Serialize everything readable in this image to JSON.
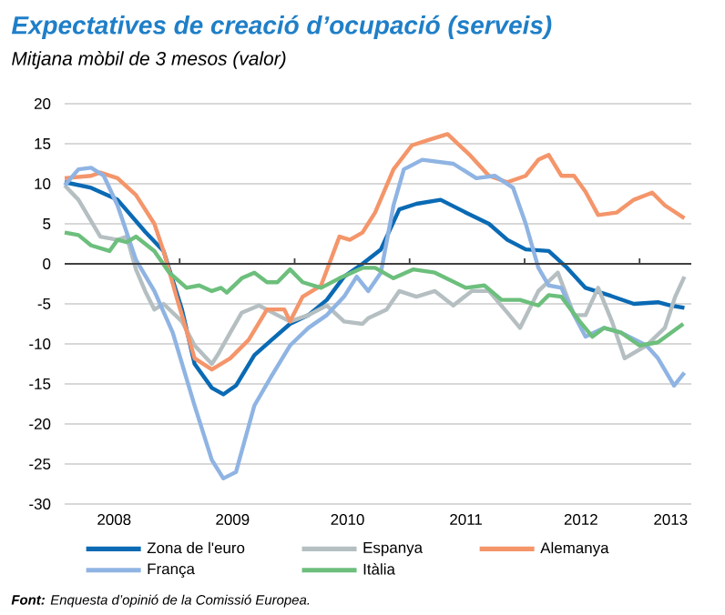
{
  "chart_data": {
    "type": "line",
    "title": "Expectatives de creació d’ocupació (serveis)",
    "subtitle": "Mitjana mòbil de 3 mesos (valor)",
    "annotations": [
      "**Font:** Enquesta d’opinió de la Comissió Europea."
    ],
    "xlim": [
      2008,
      2013.45
    ],
    "ylim": [
      -30,
      20
    ],
    "xticks": [
      {
        "value": 2008.43,
        "label": "2008"
      },
      {
        "value": 2009.46,
        "label": "2009"
      },
      {
        "value": 2010.46,
        "label": "2010"
      },
      {
        "value": 2011.49,
        "label": "2011"
      },
      {
        "value": 2012.49,
        "label": "2012"
      },
      {
        "value": 2013.27,
        "label": "2013"
      },
      {
        "value": 2009,
        "label": null
      },
      {
        "value": 2010,
        "label": null
      },
      {
        "value": 2011,
        "label": null
      },
      {
        "value": 2012,
        "label": null
      },
      {
        "value": 2013,
        "label": null
      }
    ],
    "yticks": [
      -30,
      -25,
      -20,
      -15,
      -10,
      -5,
      0,
      5,
      10,
      15,
      20
    ],
    "grid": "y",
    "legend": "bottom",
    "marker": "none",
    "line_style": "solid",
    "series": [
      {
        "name": "Zona de l'euro",
        "color": "#0a6ab4",
        "x": [
          2008.0,
          2008.23,
          2008.46,
          2008.7,
          2008.86,
          2009.02,
          2009.13,
          2009.28,
          2009.38,
          2009.49,
          2009.65,
          2009.8,
          2009.96,
          2010.12,
          2010.28,
          2010.43,
          2010.59,
          2010.75,
          2010.91,
          2011.06,
          2011.27,
          2011.49,
          2011.69,
          2011.85,
          2012.01,
          2012.21,
          2012.37,
          2012.53,
          2012.75,
          2012.95,
          2013.16,
          2013.27,
          2013.39
        ],
        "values": [
          10.2,
          9.5,
          8,
          4,
          1.6,
          -5.7,
          -12.5,
          -15.5,
          -16.3,
          -15.2,
          -11.4,
          -9.5,
          -7.5,
          -6.4,
          -4.5,
          -1.6,
          0,
          1.8,
          6.8,
          7.5,
          8,
          6.4,
          5,
          3,
          1.8,
          1.6,
          -0.5,
          -3,
          -4,
          -5,
          -4.8,
          -5.2,
          -5.5
        ]
      },
      {
        "name": "Espanya",
        "color": "#b5bfc1",
        "x": [
          2008.0,
          2008.12,
          2008.31,
          2008.46,
          2008.54,
          2008.62,
          2008.7,
          2008.78,
          2008.86,
          2009.02,
          2009.13,
          2009.28,
          2009.33,
          2009.44,
          2009.54,
          2009.69,
          2009.85,
          2009.96,
          2010.12,
          2010.28,
          2010.43,
          2010.59,
          2010.64,
          2010.8,
          2010.91,
          2011.06,
          2011.22,
          2011.38,
          2011.54,
          2011.69,
          2011.85,
          2011.96,
          2012.12,
          2012.29,
          2012.43,
          2012.53,
          2012.64,
          2012.76,
          2012.87,
          2013.06,
          2013.22,
          2013.31,
          2013.39
        ],
        "values": [
          9.8,
          8,
          3.4,
          3,
          3.4,
          -0.7,
          -3.4,
          -5.7,
          -5,
          -7.2,
          -10.2,
          -12.5,
          -11.4,
          -8.6,
          -6.1,
          -5.2,
          -6.4,
          -7.2,
          -6.4,
          -5.2,
          -7.2,
          -7.5,
          -6.8,
          -5.7,
          -3.4,
          -4.1,
          -3.4,
          -5.2,
          -3.4,
          -3.4,
          -6.1,
          -8,
          -3.4,
          -1.1,
          -6.4,
          -6.4,
          -3,
          -7.2,
          -11.8,
          -10.2,
          -8,
          -4.1,
          -1.6
        ]
      },
      {
        "name": "Alemanya",
        "color": "#f4956a",
        "x": [
          2008.0,
          2008.23,
          2008.31,
          2008.46,
          2008.62,
          2008.78,
          2008.86,
          2008.97,
          2009.13,
          2009.28,
          2009.44,
          2009.6,
          2009.76,
          2009.91,
          2009.96,
          2010.07,
          2010.23,
          2010.39,
          2010.48,
          2010.59,
          2010.7,
          2010.86,
          2011.02,
          2011.17,
          2011.33,
          2011.53,
          2011.69,
          2011.85,
          2012.01,
          2012.12,
          2012.21,
          2012.32,
          2012.43,
          2012.53,
          2012.64,
          2012.8,
          2012.95,
          2013.11,
          2013.22,
          2013.39
        ],
        "values": [
          10.7,
          11,
          11.4,
          10.7,
          8.6,
          5,
          1.6,
          -4,
          -11.8,
          -13.2,
          -11.8,
          -9.5,
          -5.7,
          -5.7,
          -7.2,
          -4.1,
          -2.7,
          3.4,
          3,
          3.9,
          6.4,
          11.8,
          14.8,
          15.5,
          16.2,
          13.5,
          11,
          10.2,
          11,
          13,
          13.6,
          11,
          11,
          9,
          6.1,
          6.4,
          8,
          8.9,
          7.3,
          5.7
        ]
      },
      {
        "name": "França",
        "color": "#8fb4e3",
        "x": [
          2008.0,
          2008.12,
          2008.23,
          2008.34,
          2008.46,
          2008.62,
          2008.78,
          2008.94,
          2009.13,
          2009.28,
          2009.38,
          2009.49,
          2009.65,
          2009.8,
          2009.96,
          2010.12,
          2010.28,
          2010.43,
          2010.54,
          2010.64,
          2010.75,
          2010.86,
          2010.95,
          2011.11,
          2011.38,
          2011.58,
          2011.74,
          2011.9,
          2012.01,
          2012.12,
          2012.21,
          2012.32,
          2012.43,
          2012.53,
          2012.69,
          2012.84,
          2013.06,
          2013.16,
          2013.3,
          2013.39
        ],
        "values": [
          9.8,
          11.8,
          12,
          11,
          7.3,
          0.5,
          -3.4,
          -8.6,
          -17.7,
          -24.5,
          -26.8,
          -26,
          -17.7,
          -14,
          -10.2,
          -8,
          -6.4,
          -4.1,
          -1.6,
          -3.4,
          -1.1,
          7.3,
          11.8,
          13,
          12.5,
          10.7,
          11,
          9.5,
          5,
          -0.5,
          -2.7,
          -3,
          -6.4,
          -9.1,
          -8,
          -8.6,
          -10.2,
          -11.8,
          -15.2,
          -13.6
        ]
      },
      {
        "name": "Itàlia",
        "color": "#6cbf7c",
        "x": [
          2008.0,
          2008.12,
          2008.23,
          2008.39,
          2008.46,
          2008.54,
          2008.62,
          2008.78,
          2008.91,
          2009.06,
          2009.17,
          2009.28,
          2009.36,
          2009.41,
          2009.54,
          2009.65,
          2009.76,
          2009.85,
          2009.96,
          2010.07,
          2010.23,
          2010.39,
          2010.59,
          2010.7,
          2010.86,
          2011.03,
          2011.22,
          2011.49,
          2011.65,
          2011.8,
          2011.96,
          2012.12,
          2012.21,
          2012.32,
          2012.48,
          2012.59,
          2012.69,
          2012.84,
          2013.0,
          2013.16,
          2013.38
        ],
        "values": [
          3.9,
          3.6,
          2.3,
          1.6,
          3,
          2.7,
          3.4,
          1.6,
          -1.1,
          -3,
          -2.7,
          -3.4,
          -3,
          -3.6,
          -1.8,
          -1.1,
          -2.3,
          -2.3,
          -0.7,
          -2.3,
          -3,
          -1.8,
          -0.5,
          -0.5,
          -1.8,
          -0.7,
          -1.1,
          -3,
          -2.7,
          -4.5,
          -4.5,
          -5.2,
          -3.9,
          -4.1,
          -7.2,
          -9.1,
          -8,
          -8.6,
          -10.2,
          -9.8,
          -7.5
        ]
      }
    ]
  }
}
